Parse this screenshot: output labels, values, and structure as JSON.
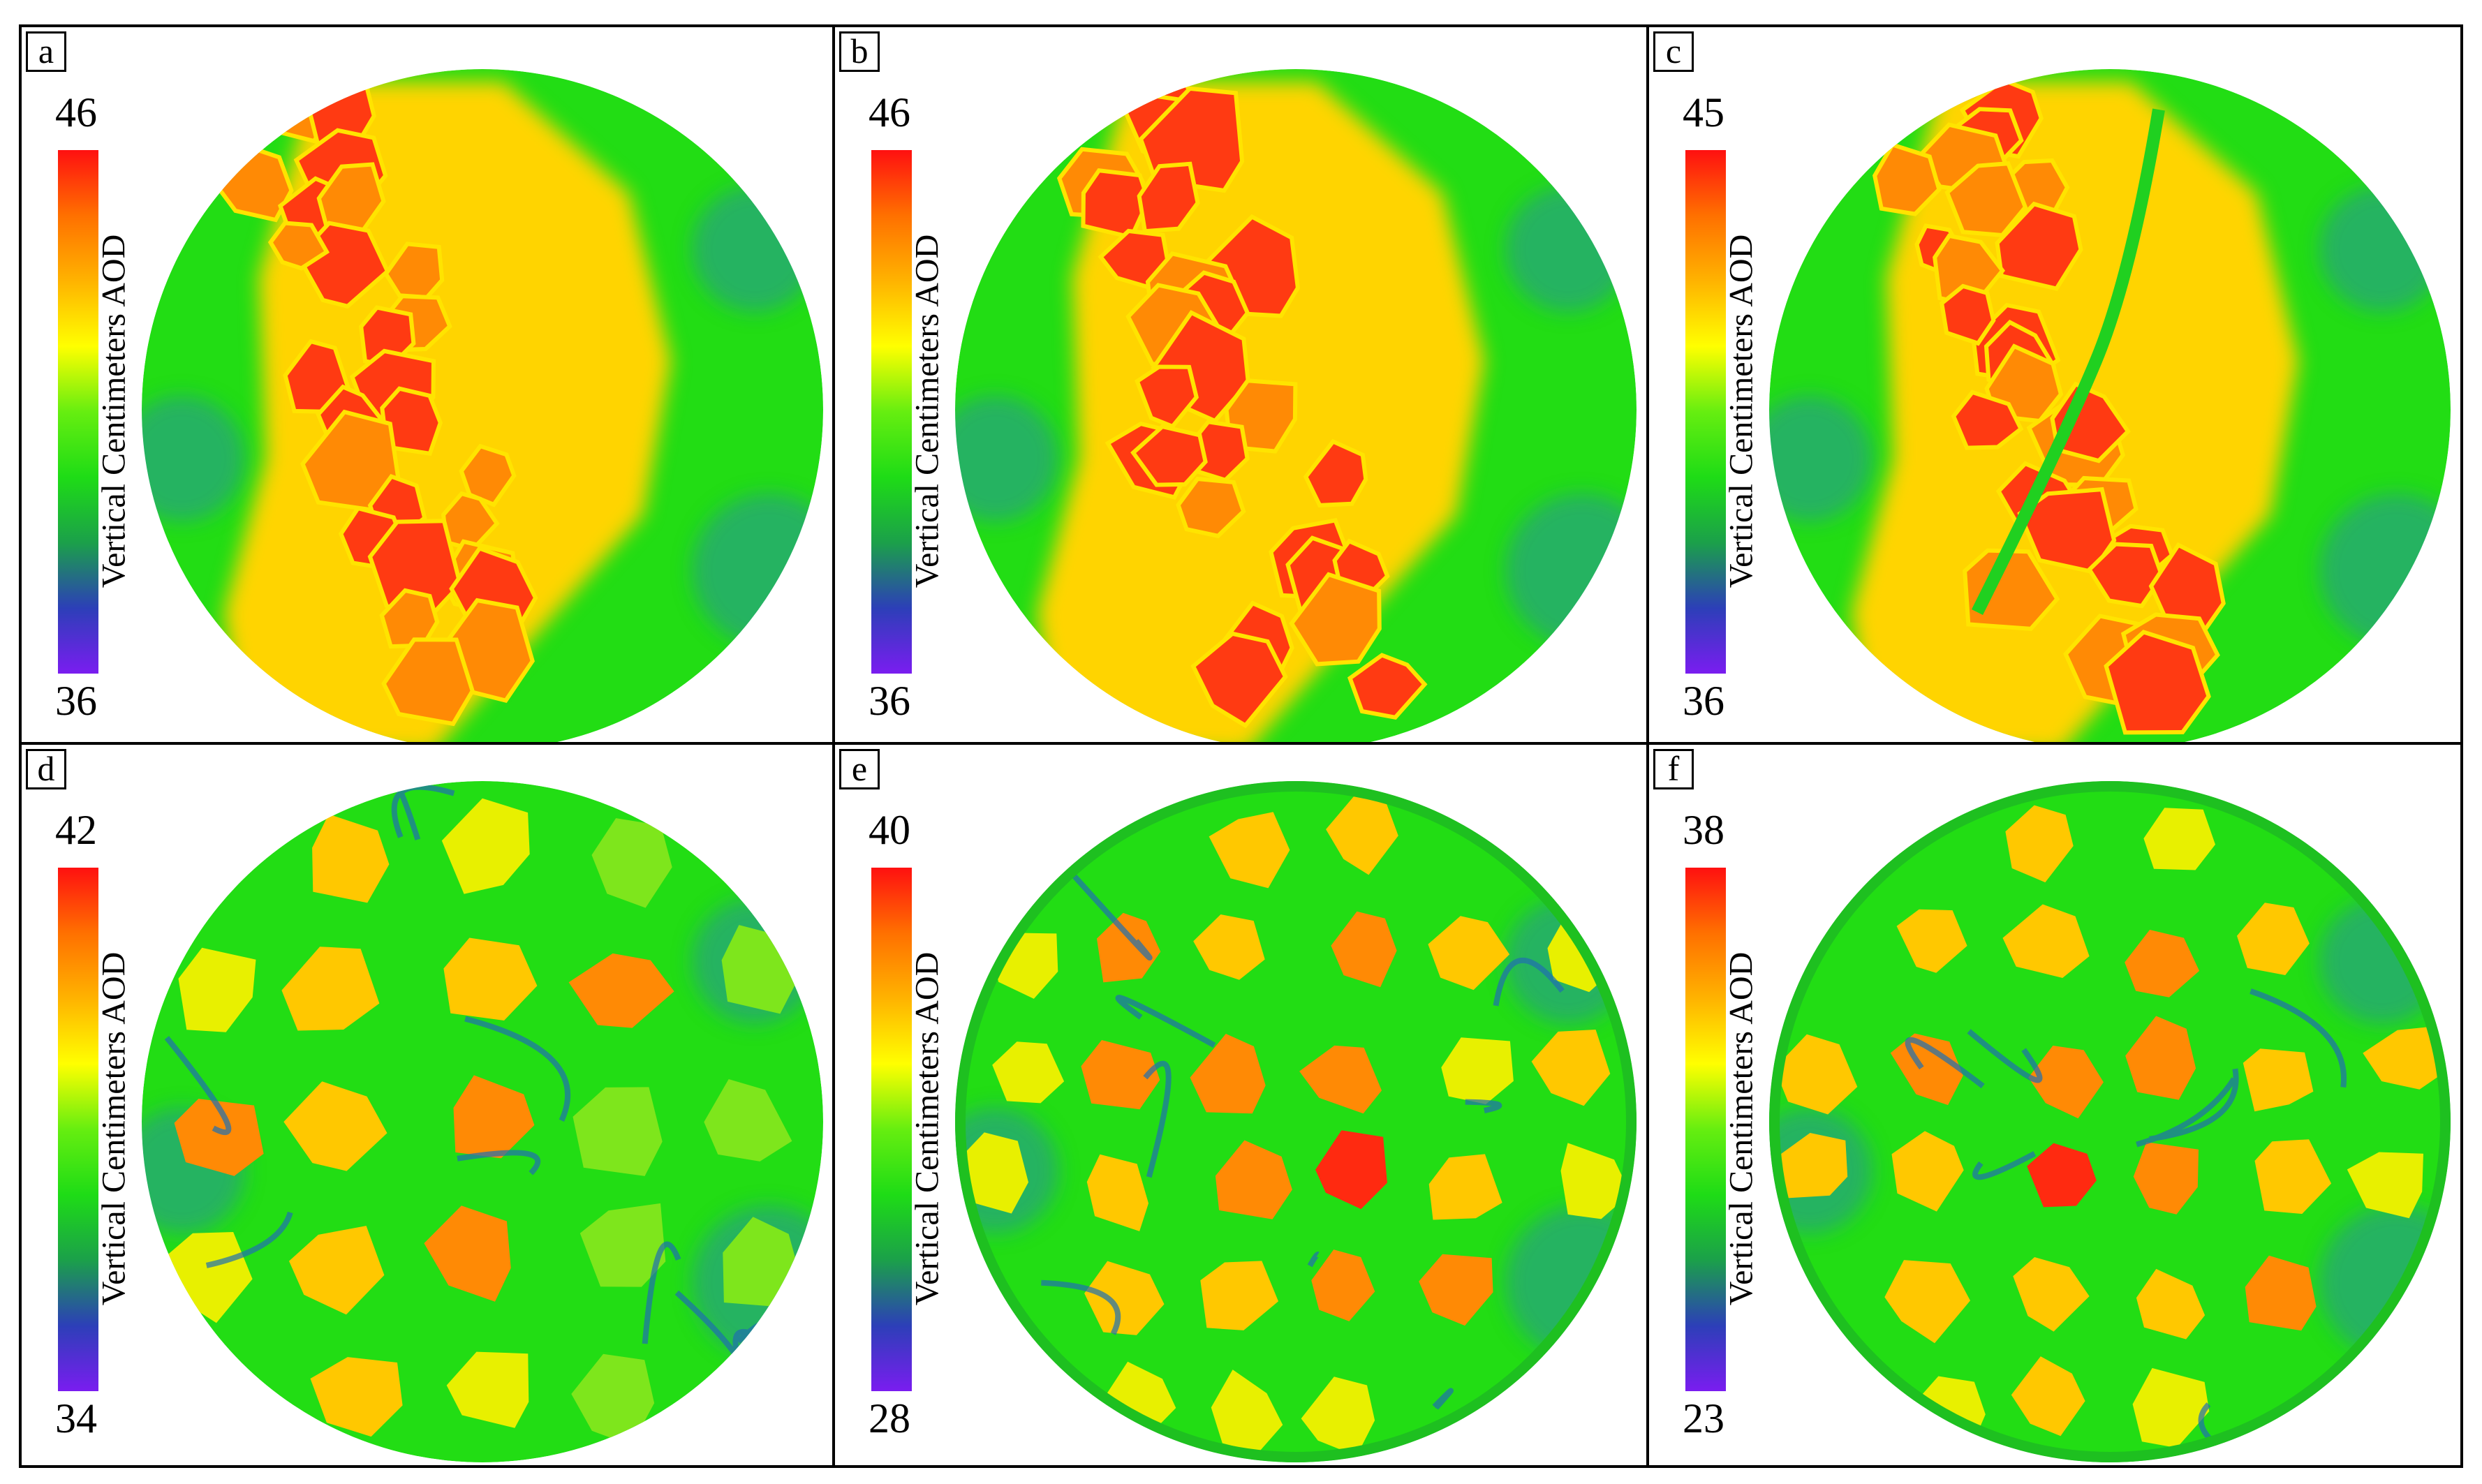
{
  "figure": {
    "colorbar_title": "Vertical Centimeters AOD",
    "panels": [
      {
        "label": "a",
        "max": "46",
        "min": "36",
        "variant": "a"
      },
      {
        "label": "b",
        "max": "46",
        "min": "36",
        "variant": "b"
      },
      {
        "label": "c",
        "max": "45",
        "min": "36",
        "variant": "c"
      },
      {
        "label": "d",
        "max": "42",
        "min": "34",
        "variant": "d"
      },
      {
        "label": "e",
        "max": "40",
        "min": "28",
        "variant": "e"
      },
      {
        "label": "f",
        "max": "38",
        "min": "23",
        "variant": "f"
      }
    ],
    "colorscale": [
      "#7a1df0",
      "#2c3fb8",
      "#1ba04a",
      "#1edc16",
      "#66ee10",
      "#ffff00",
      "#ffb300",
      "#ff7000",
      "#ff1010"
    ]
  }
}
